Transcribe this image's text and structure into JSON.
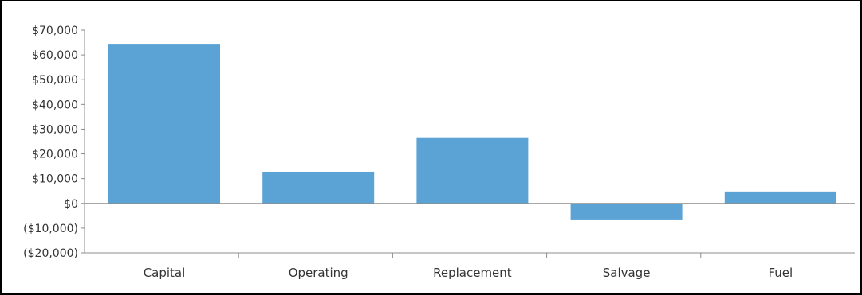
{
  "chart_data": {
    "type": "bar",
    "categories": [
      "Capital",
      "Operating",
      "Replacement",
      "Salvage",
      "Fuel"
    ],
    "values": [
      64500,
      12800,
      26700,
      -6800,
      4800
    ],
    "y_tick_values": [
      70000,
      60000,
      50000,
      40000,
      30000,
      20000,
      10000,
      0,
      -10000,
      -20000
    ],
    "y_tick_labels": [
      "$70,000",
      "$60,000",
      "$50,000",
      "$40,000",
      "$30,000",
      "$20,000",
      "$10,000",
      "$0",
      "($10,000)",
      "($20,000)"
    ],
    "ylim": [
      -20000,
      70000
    ],
    "title": "",
    "xlabel": "",
    "ylabel": "",
    "grid": false,
    "legend": "none",
    "colors": {
      "bar": "#5BA3D5",
      "axis": "#8C8C8C",
      "zero_line": "#8C8C8C",
      "text": "#333333"
    }
  }
}
